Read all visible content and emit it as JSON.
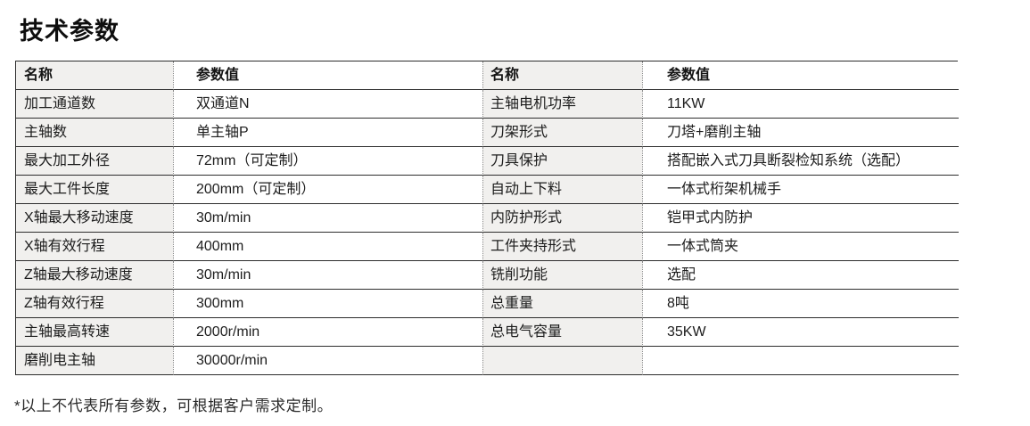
{
  "page": {
    "title": "技术参数",
    "footnote": "*以上不代表所有参数，可根据客户需求定制。"
  },
  "colors": {
    "name_column_bg": "#f1f0ee",
    "row_border": "#2d2d2d",
    "column_divider_dotted": "#8c8c8c",
    "text": "#1c1c1c"
  },
  "table": {
    "header": {
      "name_left": "名称",
      "value_left": "参数值",
      "name_right": "名称",
      "value_right": "参数值"
    },
    "rows": [
      {
        "n1": "加工通道数",
        "v1": "双通道N",
        "n2": "主轴电机功率",
        "v2": "11KW"
      },
      {
        "n1": "主轴数",
        "v1": "单主轴P",
        "n2": "刀架形式",
        "v2": "刀塔+磨削主轴"
      },
      {
        "n1": "最大加工外径",
        "v1": "72mm（可定制）",
        "n2": "刀具保护",
        "v2": "搭配嵌入式刀具断裂检知系统（选配）"
      },
      {
        "n1": "最大工件长度",
        "v1": "200mm（可定制）",
        "n2": "自动上下料",
        "v2": "一体式桁架机械手"
      },
      {
        "n1": "X轴最大移动速度",
        "v1": "30m/min",
        "n2": "内防护形式",
        "v2": "铠甲式内防护"
      },
      {
        "n1": "X轴有效行程",
        "v1": "400mm",
        "n2": "工件夹持形式",
        "v2": "一体式筒夹"
      },
      {
        "n1": "Z轴最大移动速度",
        "v1": "30m/min",
        "n2": "铣削功能",
        "v2": "选配"
      },
      {
        "n1": "Z轴有效行程",
        "v1": "300mm",
        "n2": "总重量",
        "v2": "8吨"
      },
      {
        "n1": "主轴最高转速",
        "v1": "2000r/min",
        "n2": "总电气容量",
        "v2": "35KW"
      },
      {
        "n1": "磨削电主轴",
        "v1": "30000r/min",
        "n2": "",
        "v2": ""
      }
    ]
  }
}
